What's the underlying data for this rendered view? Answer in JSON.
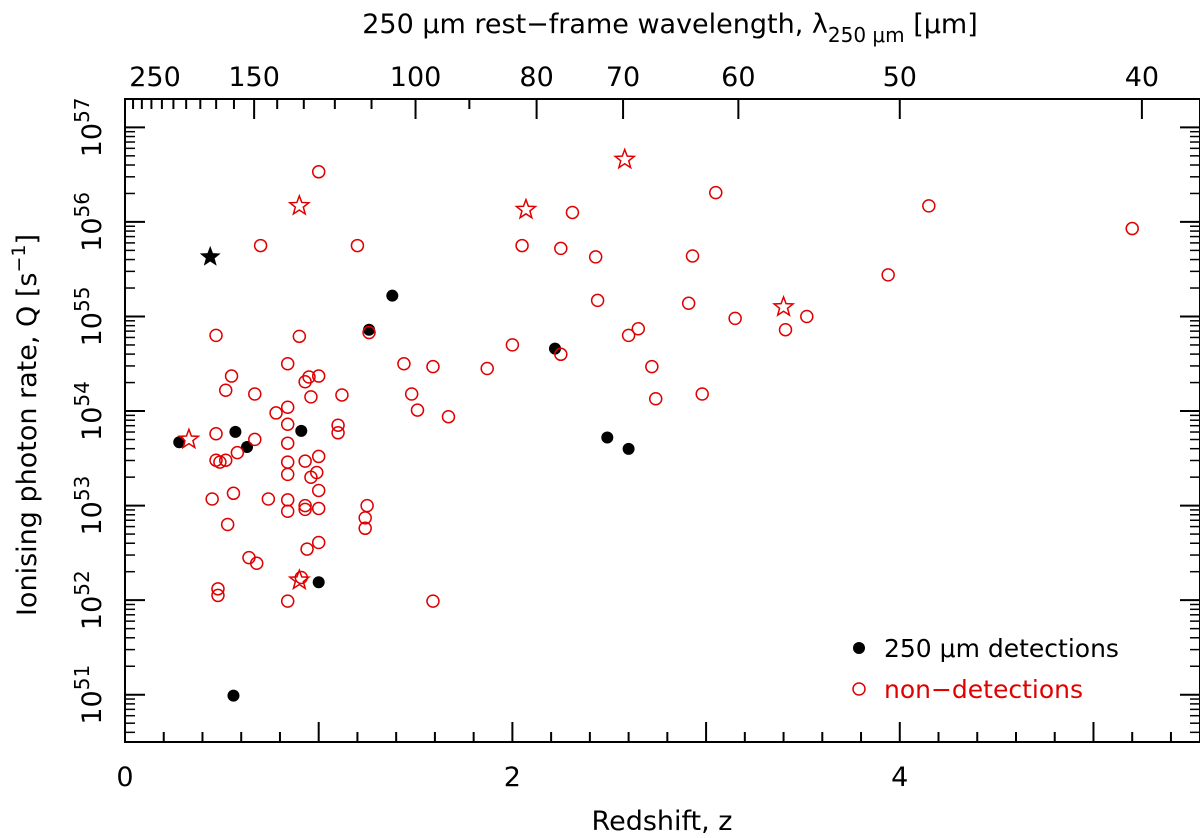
{
  "chart_data": {
    "type": "scatter",
    "xlabel": "Redshift, z",
    "ylabel": "Ionising photon rate, Q [s",
    "ylabel_sup": "−1",
    "ylabel_close": "]",
    "top_xlabel": "250 μm rest−frame wavelength, λ",
    "top_xlabel_sub": "250 μm",
    "top_xlabel_close": "[μm]",
    "xlim": [
      0,
      5.55
    ],
    "ylim_log10": [
      50.5,
      57.3
    ],
    "x_ticks": [
      {
        "value": 0,
        "label": "0"
      },
      {
        "value": 2,
        "label": "2"
      },
      {
        "value": 4,
        "label": "4"
      }
    ],
    "y_ticks": [
      {
        "value": 51,
        "base": "10",
        "exp": "51"
      },
      {
        "value": 52,
        "base": "10",
        "exp": "52"
      },
      {
        "value": 53,
        "base": "10",
        "exp": "53"
      },
      {
        "value": 54,
        "base": "10",
        "exp": "54"
      },
      {
        "value": 55,
        "base": "10",
        "exp": "55"
      },
      {
        "value": 56,
        "base": "10",
        "exp": "56"
      },
      {
        "value": 57,
        "base": "10",
        "exp": "57"
      }
    ],
    "top_ticks": [
      {
        "wavelength": 250,
        "label": "250"
      },
      {
        "wavelength": 150,
        "label": "150"
      },
      {
        "wavelength": 100,
        "label": "100"
      },
      {
        "wavelength": 80,
        "label": "80"
      },
      {
        "wavelength": 70,
        "label": "70"
      },
      {
        "wavelength": 60,
        "label": "60"
      },
      {
        "wavelength": 50,
        "label": "50"
      },
      {
        "wavelength": 40,
        "label": "40"
      }
    ],
    "legend": {
      "position": "bottom-right",
      "detections_label": "250 μm detections",
      "nondetections_label": "non−detections"
    },
    "colors": {
      "detections": "#000000",
      "nondetections": "#e00000"
    },
    "series": [
      {
        "name": "250 μm detections",
        "marker": "filled-circle",
        "points": [
          {
            "z": 0.28,
            "logQ": 53.67
          },
          {
            "z": 0.57,
            "logQ": 53.78
          },
          {
            "z": 0.63,
            "logQ": 53.62
          },
          {
            "z": 0.91,
            "logQ": 53.79
          },
          {
            "z": 1.0,
            "logQ": 52.19
          },
          {
            "z": 1.26,
            "logQ": 54.86
          },
          {
            "z": 1.38,
            "logQ": 55.22
          },
          {
            "z": 2.22,
            "logQ": 54.66
          },
          {
            "z": 2.49,
            "logQ": 53.72
          },
          {
            "z": 2.6,
            "logQ": 53.6
          },
          {
            "z": 0.56,
            "logQ": 50.99
          }
        ]
      },
      {
        "name": "250 μm detections (star)",
        "marker": "filled-star",
        "points": [
          {
            "z": 0.44,
            "logQ": 55.63
          }
        ]
      },
      {
        "name": "non−detections",
        "marker": "open-circle",
        "points": [
          {
            "z": 0.47,
            "logQ": 54.8
          },
          {
            "z": 0.55,
            "logQ": 54.37
          },
          {
            "z": 0.52,
            "logQ": 54.22
          },
          {
            "z": 0.67,
            "logQ": 54.18
          },
          {
            "z": 0.47,
            "logQ": 53.76
          },
          {
            "z": 0.58,
            "logQ": 53.56
          },
          {
            "z": 0.47,
            "logQ": 53.48
          },
          {
            "z": 0.49,
            "logQ": 53.46
          },
          {
            "z": 0.52,
            "logQ": 53.48
          },
          {
            "z": 0.45,
            "logQ": 53.07
          },
          {
            "z": 0.56,
            "logQ": 53.13
          },
          {
            "z": 0.53,
            "logQ": 52.8
          },
          {
            "z": 0.67,
            "logQ": 53.7
          },
          {
            "z": 0.64,
            "logQ": 52.45
          },
          {
            "z": 0.68,
            "logQ": 52.39
          },
          {
            "z": 0.48,
            "logQ": 52.12
          },
          {
            "z": 0.48,
            "logQ": 52.05
          },
          {
            "z": 0.74,
            "logQ": 53.07
          },
          {
            "z": 0.78,
            "logQ": 53.98
          },
          {
            "z": 0.84,
            "logQ": 54.5
          },
          {
            "z": 0.84,
            "logQ": 54.04
          },
          {
            "z": 0.84,
            "logQ": 53.86
          },
          {
            "z": 0.84,
            "logQ": 53.66
          },
          {
            "z": 0.84,
            "logQ": 53.46
          },
          {
            "z": 0.84,
            "logQ": 53.33
          },
          {
            "z": 0.84,
            "logQ": 53.06
          },
          {
            "z": 0.84,
            "logQ": 52.94
          },
          {
            "z": 0.84,
            "logQ": 51.99
          },
          {
            "z": 0.9,
            "logQ": 54.79
          },
          {
            "z": 0.93,
            "logQ": 54.31
          },
          {
            "z": 0.95,
            "logQ": 54.36
          },
          {
            "z": 0.96,
            "logQ": 54.15
          },
          {
            "z": 0.93,
            "logQ": 53.47
          },
          {
            "z": 0.96,
            "logQ": 53.3
          },
          {
            "z": 0.93,
            "logQ": 53.0
          },
          {
            "z": 0.93,
            "logQ": 52.96
          },
          {
            "z": 0.94,
            "logQ": 52.54
          },
          {
            "z": 0.91,
            "logQ": 52.24
          },
          {
            "z": 1.0,
            "logQ": 54.37
          },
          {
            "z": 1.0,
            "logQ": 53.52
          },
          {
            "z": 0.99,
            "logQ": 53.35
          },
          {
            "z": 1.0,
            "logQ": 53.16
          },
          {
            "z": 1.0,
            "logQ": 52.97
          },
          {
            "z": 1.0,
            "logQ": 52.61
          },
          {
            "z": 1.1,
            "logQ": 53.85
          },
          {
            "z": 1.1,
            "logQ": 53.77
          },
          {
            "z": 1.12,
            "logQ": 54.17
          },
          {
            "z": 1.2,
            "logQ": 55.75
          },
          {
            "z": 1.25,
            "logQ": 53.0
          },
          {
            "z": 1.24,
            "logQ": 52.87
          },
          {
            "z": 1.24,
            "logQ": 52.76
          },
          {
            "z": 1.26,
            "logQ": 54.83
          },
          {
            "z": 1.44,
            "logQ": 54.5
          },
          {
            "z": 1.48,
            "logQ": 54.18
          },
          {
            "z": 1.51,
            "logQ": 54.01
          },
          {
            "z": 1.59,
            "logQ": 54.47
          },
          {
            "z": 1.59,
            "logQ": 51.99
          },
          {
            "z": 1.67,
            "logQ": 53.94
          },
          {
            "z": 1.0,
            "logQ": 56.53
          },
          {
            "z": 0.7,
            "logQ": 55.75
          },
          {
            "z": 1.87,
            "logQ": 54.45
          },
          {
            "z": 2.0,
            "logQ": 54.7
          },
          {
            "z": 2.05,
            "logQ": 55.75
          },
          {
            "z": 2.25,
            "logQ": 54.6
          },
          {
            "z": 2.25,
            "logQ": 55.72
          },
          {
            "z": 2.31,
            "logQ": 56.1
          },
          {
            "z": 2.43,
            "logQ": 55.63
          },
          {
            "z": 2.44,
            "logQ": 55.17
          },
          {
            "z": 2.6,
            "logQ": 54.8
          },
          {
            "z": 2.65,
            "logQ": 54.87
          },
          {
            "z": 2.72,
            "logQ": 54.47
          },
          {
            "z": 2.74,
            "logQ": 54.13
          },
          {
            "z": 2.91,
            "logQ": 55.14
          },
          {
            "z": 2.93,
            "logQ": 55.64
          },
          {
            "z": 2.98,
            "logQ": 54.18
          },
          {
            "z": 3.05,
            "logQ": 56.31
          },
          {
            "z": 3.15,
            "logQ": 54.98
          },
          {
            "z": 3.41,
            "logQ": 54.86
          },
          {
            "z": 3.52,
            "logQ": 55.0
          },
          {
            "z": 3.94,
            "logQ": 55.44
          },
          {
            "z": 4.15,
            "logQ": 56.17
          },
          {
            "z": 5.2,
            "logQ": 55.93
          }
        ]
      },
      {
        "name": "non−detections (star)",
        "marker": "open-star",
        "points": [
          {
            "z": 0.33,
            "logQ": 53.7
          },
          {
            "z": 0.9,
            "logQ": 56.17
          },
          {
            "z": 0.9,
            "logQ": 52.21
          },
          {
            "z": 2.07,
            "logQ": 56.13
          },
          {
            "z": 2.58,
            "logQ": 56.66
          },
          {
            "z": 3.4,
            "logQ": 55.1
          }
        ]
      }
    ]
  }
}
